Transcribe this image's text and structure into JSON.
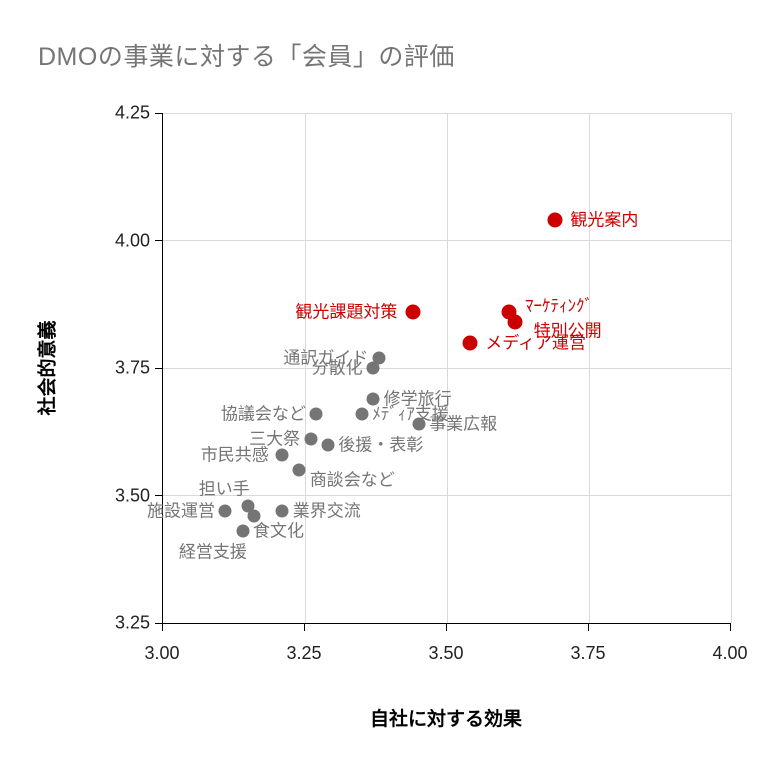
{
  "chart_data": {
    "type": "scatter",
    "title": "DMOの事業に対する「会員」の評価",
    "xlabel": "自社に対する効果",
    "ylabel": "社会的意義",
    "xlim": [
      3.0,
      4.0
    ],
    "ylim": [
      3.25,
      4.25
    ],
    "grid": true,
    "legend_position": "none",
    "colors": {
      "highlight": "#cc0000",
      "default": "#757575",
      "gridline": "#d9d9d9",
      "axis": "#000000",
      "tick_text": "#222222",
      "title_text": "#757575"
    },
    "x_ticks": [
      {
        "value": 3.0,
        "label": "3.00"
      },
      {
        "value": 3.25,
        "label": "3.25"
      },
      {
        "value": 3.5,
        "label": "3.50"
      },
      {
        "value": 3.75,
        "label": "3.75"
      },
      {
        "value": 4.0,
        "label": "4.00"
      }
    ],
    "y_ticks": [
      {
        "value": 3.25,
        "label": "3.25"
      },
      {
        "value": 3.5,
        "label": "3.50"
      },
      {
        "value": 3.75,
        "label": "3.75"
      },
      {
        "value": 4.0,
        "label": "4.00"
      },
      {
        "value": 4.25,
        "label": "4.25"
      }
    ],
    "series": [
      {
        "name": "highlighted",
        "color": "#cc0000",
        "dot_diameter": 15,
        "label_gap": 8,
        "points": [
          {
            "label": "観光案内",
            "x": 3.69,
            "y": 4.04,
            "placement": "right"
          },
          {
            "label": "観光課題対策",
            "x": 3.44,
            "y": 3.86,
            "placement": "left"
          },
          {
            "label": "ﾏｰｹﾃｨﾝｸﾞ",
            "x": 3.61,
            "y": 3.86,
            "placement": "right",
            "dy": -6
          },
          {
            "label": "特別公開",
            "x": 3.62,
            "y": 3.84,
            "placement": "right",
            "dx": 3,
            "dy": 9
          },
          {
            "label": "メディア運営",
            "x": 3.54,
            "y": 3.8,
            "placement": "right"
          }
        ]
      },
      {
        "name": "default",
        "color": "#757575",
        "dot_diameter": 13,
        "label_gap": 4,
        "points": [
          {
            "label": "通訳ガイド",
            "x": 3.38,
            "y": 3.77,
            "placement": "left"
          },
          {
            "label": "分散化",
            "x": 3.37,
            "y": 3.75,
            "placement": "left"
          },
          {
            "label": "修学旅行",
            "x": 3.37,
            "y": 3.69,
            "placement": "right"
          },
          {
            "label": "ﾒﾃﾞｨｱ支援",
            "x": 3.35,
            "y": 3.66,
            "placement": "right"
          },
          {
            "label": "事業広報",
            "x": 3.45,
            "y": 3.64,
            "placement": "right"
          },
          {
            "label": "協議会など",
            "x": 3.27,
            "y": 3.66,
            "placement": "left"
          },
          {
            "label": "三大祭",
            "x": 3.26,
            "y": 3.61,
            "placement": "left"
          },
          {
            "label": "後援・表彰",
            "x": 3.29,
            "y": 3.6,
            "placement": "right"
          },
          {
            "label": "市民共感",
            "x": 3.21,
            "y": 3.58,
            "placement": "left",
            "dx": -3
          },
          {
            "label": "商談会など",
            "x": 3.24,
            "y": 3.55,
            "placement": "right",
            "dy": 10
          },
          {
            "label": "担い手",
            "x": 3.15,
            "y": 3.48,
            "placement": "center",
            "dx": -24,
            "dy": -17
          },
          {
            "label": "施設運営",
            "x": 3.11,
            "y": 3.47,
            "placement": "left"
          },
          {
            "label": "業界交流",
            "x": 3.21,
            "y": 3.47,
            "placement": "right"
          },
          {
            "label": "経営支援",
            "x": 3.16,
            "y": 3.46,
            "placement": "center",
            "dx": -41,
            "dy": 36
          },
          {
            "label": "食文化",
            "x": 3.14,
            "y": 3.43,
            "placement": "right"
          }
        ]
      }
    ]
  }
}
